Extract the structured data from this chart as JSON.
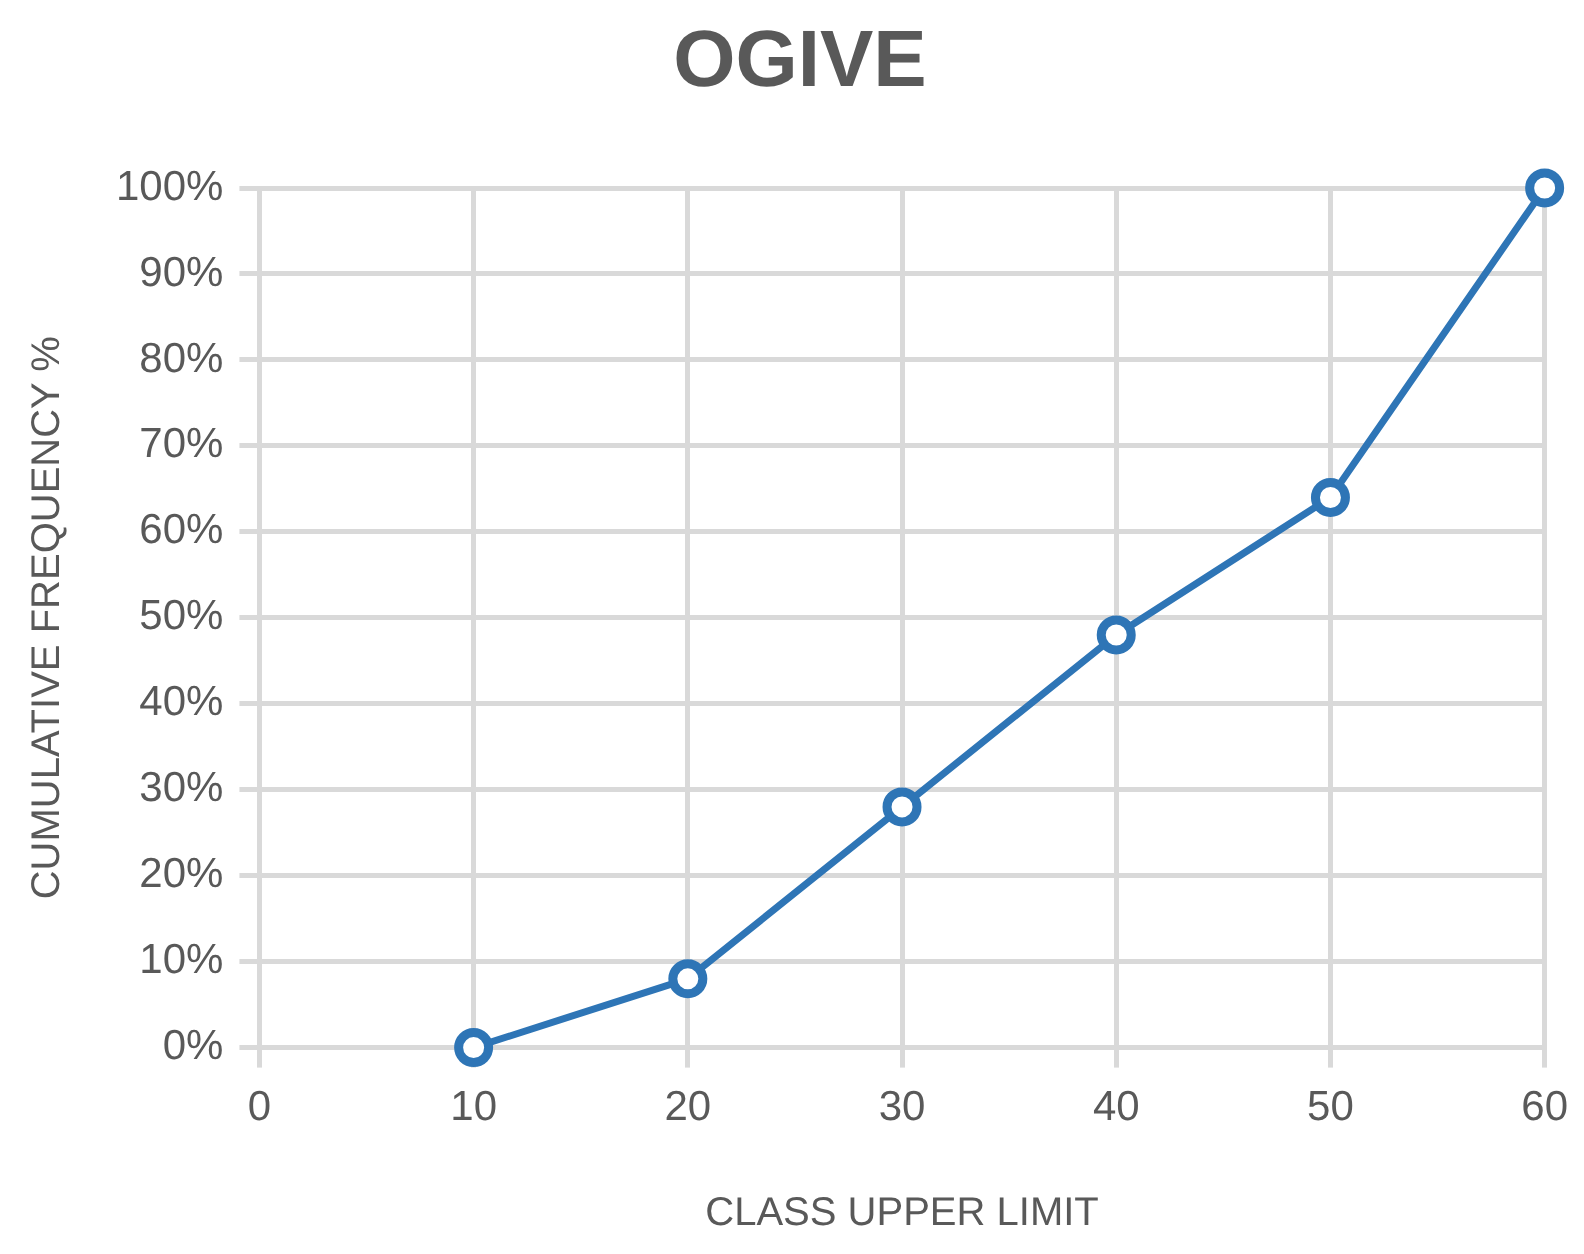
{
  "chart_data": {
    "type": "line",
    "title": "OGIVE",
    "xlabel": "CLASS UPPER LIMIT",
    "ylabel": "CUMULATIVE FREQUENCY %",
    "x": [
      10,
      20,
      30,
      40,
      50,
      60
    ],
    "series": [
      {
        "color": "#2e75b6",
        "values": [
          0,
          8,
          28,
          48,
          64,
          100
        ]
      }
    ],
    "xlim": [
      0,
      60
    ],
    "xticks": [
      0,
      10,
      20,
      30,
      40,
      50,
      60
    ],
    "ylim": [
      0,
      100
    ],
    "yticks": [
      {
        "value": 0,
        "label": "0%"
      },
      {
        "value": 10,
        "label": "10%"
      },
      {
        "value": 20,
        "label": "20%"
      },
      {
        "value": 30,
        "label": "30%"
      },
      {
        "value": 40,
        "label": "40%"
      },
      {
        "value": 50,
        "label": "50%"
      },
      {
        "value": 60,
        "label": "60%"
      },
      {
        "value": 70,
        "label": "70%"
      },
      {
        "value": 80,
        "label": "80%"
      },
      {
        "value": 90,
        "label": "90%"
      },
      {
        "value": 100,
        "label": "100%"
      }
    ],
    "grid": true,
    "marker": "circle",
    "line_style": "solid"
  }
}
